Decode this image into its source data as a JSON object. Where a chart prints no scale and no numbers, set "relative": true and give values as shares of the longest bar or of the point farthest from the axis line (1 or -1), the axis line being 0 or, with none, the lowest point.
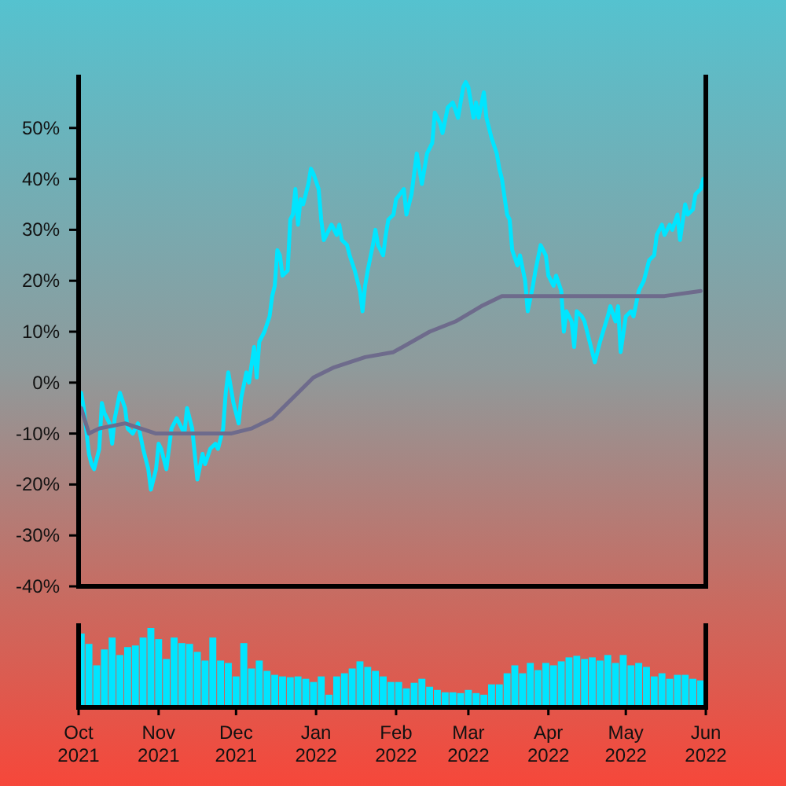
{
  "chart_data": [
    {
      "type": "line",
      "xlim": [
        "2021-10-01",
        "2022-06-01"
      ],
      "ylim": [
        -40,
        60
      ],
      "yticks": [
        {
          "value": -40,
          "label": "-40%"
        },
        {
          "value": -30,
          "label": "-30%"
        },
        {
          "value": -20,
          "label": "-20%"
        },
        {
          "value": -10,
          "label": "-10%"
        },
        {
          "value": 0,
          "label": "0%"
        },
        {
          "value": 10,
          "label": "10%"
        },
        {
          "value": 20,
          "label": "20%"
        },
        {
          "value": 30,
          "label": "30%"
        },
        {
          "value": 40,
          "label": "40%"
        },
        {
          "value": 50,
          "label": "50%"
        }
      ],
      "tick_labels": "y",
      "series": [
        {
          "color": "#00e5ff",
          "x": [
            "2021-10-02",
            "2021-10-03",
            "2021-10-05",
            "2021-10-06",
            "2021-10-07",
            "2021-10-09",
            "2021-10-10",
            "2021-10-11",
            "2021-10-13",
            "2021-10-14",
            "2021-10-15",
            "2021-10-17",
            "2021-10-19",
            "2021-10-20",
            "2021-10-22",
            "2021-10-24",
            "2021-10-26",
            "2021-10-28",
            "2021-10-29",
            "2021-10-31",
            "2021-11-01",
            "2021-11-02",
            "2021-11-04",
            "2021-11-05",
            "2021-11-06",
            "2021-11-08",
            "2021-11-11",
            "2021-11-12",
            "2021-11-14",
            "2021-11-15",
            "2021-11-16",
            "2021-11-18",
            "2021-11-19",
            "2021-11-21",
            "2021-11-23",
            "2021-11-24",
            "2021-11-26",
            "2021-11-27",
            "2021-11-28",
            "2021-11-30",
            "2021-12-01",
            "2021-12-02",
            "2021-12-03",
            "2021-12-05",
            "2021-12-06",
            "2021-12-08",
            "2021-12-09",
            "2021-12-10",
            "2021-12-12",
            "2021-12-14",
            "2021-12-15",
            "2021-12-16",
            "2021-12-17",
            "2021-12-18",
            "2021-12-19",
            "2021-12-21",
            "2021-12-22",
            "2021-12-23",
            "2021-12-24",
            "2021-12-25",
            "2021-12-26",
            "2021-12-27",
            "2021-12-29",
            "2021-12-30",
            "2021-12-31",
            "2022-01-02",
            "2022-01-03",
            "2022-01-04",
            "2022-01-06",
            "2022-01-07",
            "2022-01-09",
            "2022-01-10",
            "2022-01-11",
            "2022-01-13",
            "2022-01-14",
            "2022-01-16",
            "2022-01-18",
            "2022-01-19",
            "2022-01-20",
            "2022-01-21",
            "2022-01-23",
            "2022-01-24",
            "2022-01-25",
            "2022-01-27",
            "2022-01-28",
            "2022-01-29",
            "2022-01-31",
            "2022-02-01",
            "2022-02-04",
            "2022-02-05",
            "2022-02-07",
            "2022-02-09",
            "2022-02-11",
            "2022-02-13",
            "2022-02-15",
            "2022-02-16",
            "2022-02-18",
            "2022-02-19",
            "2022-02-21",
            "2022-02-23",
            "2022-02-25",
            "2022-02-27",
            "2022-02-28",
            "2022-03-01",
            "2022-03-03",
            "2022-03-04",
            "2022-03-05",
            "2022-03-07",
            "2022-03-08",
            "2022-03-10",
            "2022-03-12",
            "2022-03-13",
            "2022-03-14",
            "2022-03-16",
            "2022-03-17",
            "2022-03-18",
            "2022-03-20",
            "2022-03-21",
            "2022-03-23",
            "2022-03-24",
            "2022-03-26",
            "2022-03-27",
            "2022-03-29",
            "2022-03-31",
            "2022-04-01",
            "2022-04-03",
            "2022-04-04",
            "2022-04-06",
            "2022-04-07",
            "2022-04-08",
            "2022-04-10",
            "2022-04-11",
            "2022-04-12",
            "2022-04-14",
            "2022-04-15",
            "2022-04-17",
            "2022-04-19",
            "2022-04-21",
            "2022-04-24",
            "2022-04-25",
            "2022-04-27",
            "2022-04-28",
            "2022-04-29",
            "2022-05-01",
            "2022-05-03",
            "2022-05-04",
            "2022-05-06",
            "2022-05-08",
            "2022-05-10",
            "2022-05-12",
            "2022-05-13",
            "2022-05-15",
            "2022-05-16",
            "2022-05-18",
            "2022-05-19",
            "2022-05-21",
            "2022-05-22",
            "2022-05-24",
            "2022-05-25",
            "2022-05-27",
            "2022-05-28",
            "2022-05-30",
            "2022-05-31"
          ],
          "values": [
            -2,
            -5,
            -14,
            -16,
            -17,
            -13,
            -4,
            -6,
            -8,
            -12,
            -7,
            -2,
            -5,
            -9,
            -10,
            -8,
            -13,
            -17,
            -21,
            -17,
            -12,
            -13,
            -17,
            -13,
            -9,
            -7,
            -10,
            -5,
            -9,
            -14,
            -19,
            -14,
            -16,
            -13,
            -12,
            -13,
            -9,
            -2,
            2,
            -4,
            -6,
            -8,
            -3,
            2,
            0,
            7,
            1,
            8,
            10,
            13,
            17,
            19,
            26,
            25,
            21,
            22,
            32,
            33,
            38,
            31,
            36,
            35,
            39,
            42,
            41,
            38,
            32,
            28,
            30,
            31,
            29,
            31,
            28,
            27,
            25,
            22,
            18,
            14,
            19,
            22,
            27,
            30,
            27,
            25,
            29,
            32,
            33,
            36,
            38,
            33,
            37,
            45,
            39,
            45,
            47,
            53,
            51,
            49,
            54,
            55,
            52,
            58,
            59,
            58,
            52,
            55,
            52,
            57,
            52,
            48,
            45,
            42,
            40,
            33,
            32,
            26,
            23,
            25,
            20,
            14,
            19,
            22,
            27,
            25,
            21,
            19,
            21,
            18,
            10,
            14,
            12,
            7,
            14,
            13,
            12,
            8,
            4,
            8,
            13,
            15,
            12,
            15,
            6,
            13,
            14,
            13,
            18,
            20,
            24,
            25,
            29,
            31,
            29,
            31,
            30,
            33,
            28,
            35,
            33,
            34,
            37,
            38,
            40
          ]
        },
        {
          "color": "#6e6b8c",
          "x": [
            "2021-10-02",
            "2021-10-05",
            "2021-10-09",
            "2021-10-19",
            "2021-10-25",
            "2021-10-31",
            "2021-11-11",
            "2021-11-21",
            "2021-11-29",
            "2021-12-07",
            "2021-12-15",
            "2021-12-23",
            "2021-12-31",
            "2022-01-08",
            "2022-01-20",
            "2022-01-31",
            "2022-02-14",
            "2022-02-24",
            "2022-03-06",
            "2022-03-14",
            "2022-03-22",
            "2022-04-05",
            "2022-04-19",
            "2022-05-02",
            "2022-05-16",
            "2022-05-30"
          ],
          "values": [
            -5,
            -10,
            -9,
            -8,
            -9,
            -10,
            -10,
            -10,
            -10,
            -9,
            -7,
            -3,
            1,
            3,
            5,
            6,
            10,
            12,
            15,
            17,
            17,
            17,
            17,
            17,
            17,
            18
          ]
        }
      ]
    },
    {
      "type": "bar",
      "relative": true,
      "color": "#00e5ff",
      "xlim": [
        "2021-10-01",
        "2022-06-01"
      ],
      "tick_labels": "x",
      "xticks": [
        {
          "value": "2021-10-01",
          "label": "Oct\n2021"
        },
        {
          "value": "2021-11-01",
          "label": "Nov\n2021"
        },
        {
          "value": "2021-12-01",
          "label": "Dec\n2021"
        },
        {
          "value": "2022-01-01",
          "label": "Jan\n2022"
        },
        {
          "value": "2022-02-01",
          "label": "Feb\n2022"
        },
        {
          "value": "2022-03-01",
          "label": "Mar\n2022"
        },
        {
          "value": "2022-04-01",
          "label": "Apr\n2022"
        },
        {
          "value": "2022-05-01",
          "label": "May\n2022"
        },
        {
          "value": "2022-06-01",
          "label": "Jun\n2022"
        }
      ],
      "x": [
        "2021-10-02",
        "2021-10-05",
        "2021-10-08",
        "2021-10-11",
        "2021-10-14",
        "2021-10-17",
        "2021-10-20",
        "2021-10-23",
        "2021-10-26",
        "2021-10-29",
        "2021-11-01",
        "2021-11-04",
        "2021-11-07",
        "2021-11-10",
        "2021-11-13",
        "2021-11-16",
        "2021-11-19",
        "2021-11-22",
        "2021-11-25",
        "2021-11-28",
        "2021-12-01",
        "2021-12-04",
        "2021-12-07",
        "2021-12-10",
        "2021-12-13",
        "2021-12-16",
        "2021-12-19",
        "2021-12-22",
        "2021-12-25",
        "2021-12-28",
        "2021-12-31",
        "2022-01-03",
        "2022-01-06",
        "2022-01-09",
        "2022-01-12",
        "2022-01-15",
        "2022-01-18",
        "2022-01-21",
        "2022-01-24",
        "2022-01-27",
        "2022-01-30",
        "2022-02-02",
        "2022-02-05",
        "2022-02-08",
        "2022-02-11",
        "2022-02-14",
        "2022-02-17",
        "2022-02-20",
        "2022-02-23",
        "2022-02-26",
        "2022-03-01",
        "2022-03-04",
        "2022-03-07",
        "2022-03-10",
        "2022-03-13",
        "2022-03-16",
        "2022-03-19",
        "2022-03-22",
        "2022-03-25",
        "2022-03-28",
        "2022-03-31",
        "2022-04-03",
        "2022-04-06",
        "2022-04-09",
        "2022-04-12",
        "2022-04-15",
        "2022-04-18",
        "2022-04-21",
        "2022-04-24",
        "2022-04-27",
        "2022-04-30",
        "2022-05-03",
        "2022-05-06",
        "2022-05-09",
        "2022-05-12",
        "2022-05-15",
        "2022-05-18",
        "2022-05-21",
        "2022-05-24",
        "2022-05-27",
        "2022-05-30"
      ],
      "values": [
        0.93,
        0.8,
        0.53,
        0.73,
        0.88,
        0.66,
        0.76,
        0.78,
        0.88,
        1,
        0.86,
        0.61,
        0.88,
        0.81,
        0.8,
        0.7,
        0.59,
        0.88,
        0.59,
        0.56,
        0.39,
        0.81,
        0.49,
        0.59,
        0.46,
        0.41,
        0.39,
        0.38,
        0.39,
        0.36,
        0.32,
        0.39,
        0.16,
        0.39,
        0.43,
        0.49,
        0.58,
        0.51,
        0.46,
        0.39,
        0.32,
        0.32,
        0.24,
        0.31,
        0.36,
        0.26,
        0.22,
        0.19,
        0.19,
        0.18,
        0.22,
        0.18,
        0.16,
        0.29,
        0.29,
        0.43,
        0.53,
        0.43,
        0.56,
        0.47,
        0.56,
        0.53,
        0.58,
        0.63,
        0.65,
        0.61,
        0.63,
        0.59,
        0.66,
        0.56,
        0.66,
        0.53,
        0.56,
        0.51,
        0.39,
        0.43,
        0.36,
        0.41,
        0.41,
        0.36,
        0.34
      ]
    }
  ]
}
